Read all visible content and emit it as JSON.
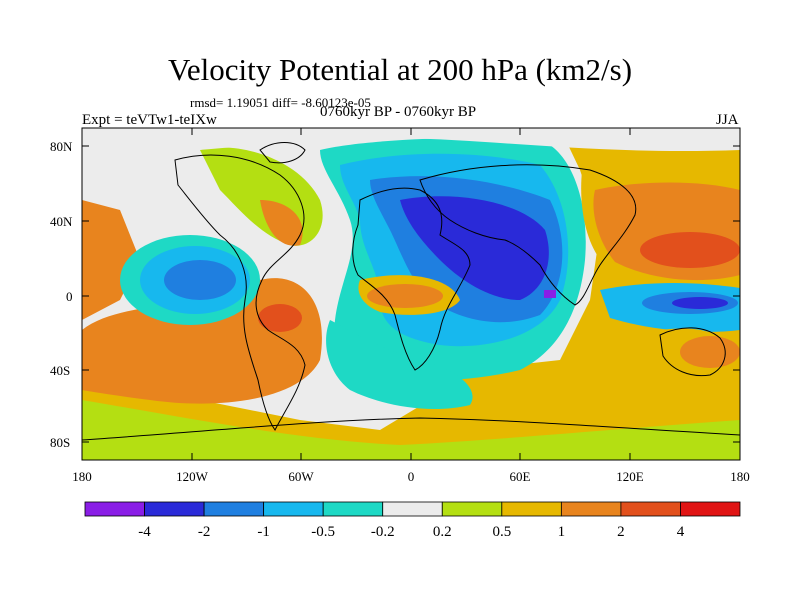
{
  "header": {
    "title": "Velocity Potential at 200 hPa (km2/s)",
    "stats": "rmsd= 1.19051 diff= -8.60123e-05",
    "experiment": "Expt = teVTw1-teIXw",
    "period": "0760kyr BP - 0760kyr BP",
    "season": "JJA"
  },
  "axes": {
    "lat_labels": [
      "80N",
      "40N",
      "0",
      "40S",
      "80S"
    ],
    "lon_labels": [
      "180",
      "120W",
      "60W",
      "0",
      "60E",
      "120E",
      "180"
    ]
  },
  "colorbar": {
    "colors": [
      "#8a1ee6",
      "#2a2ad8",
      "#1f7fe0",
      "#17b8ee",
      "#1ed9c5",
      "#ececec",
      "#b4df12",
      "#e6b800",
      "#e8841e",
      "#e2501c",
      "#e01414"
    ],
    "labels": [
      "-4",
      "-2",
      "-1",
      "-0.5",
      "-0.2",
      "0.2",
      "0.5",
      "1",
      "2",
      "4"
    ]
  }
}
